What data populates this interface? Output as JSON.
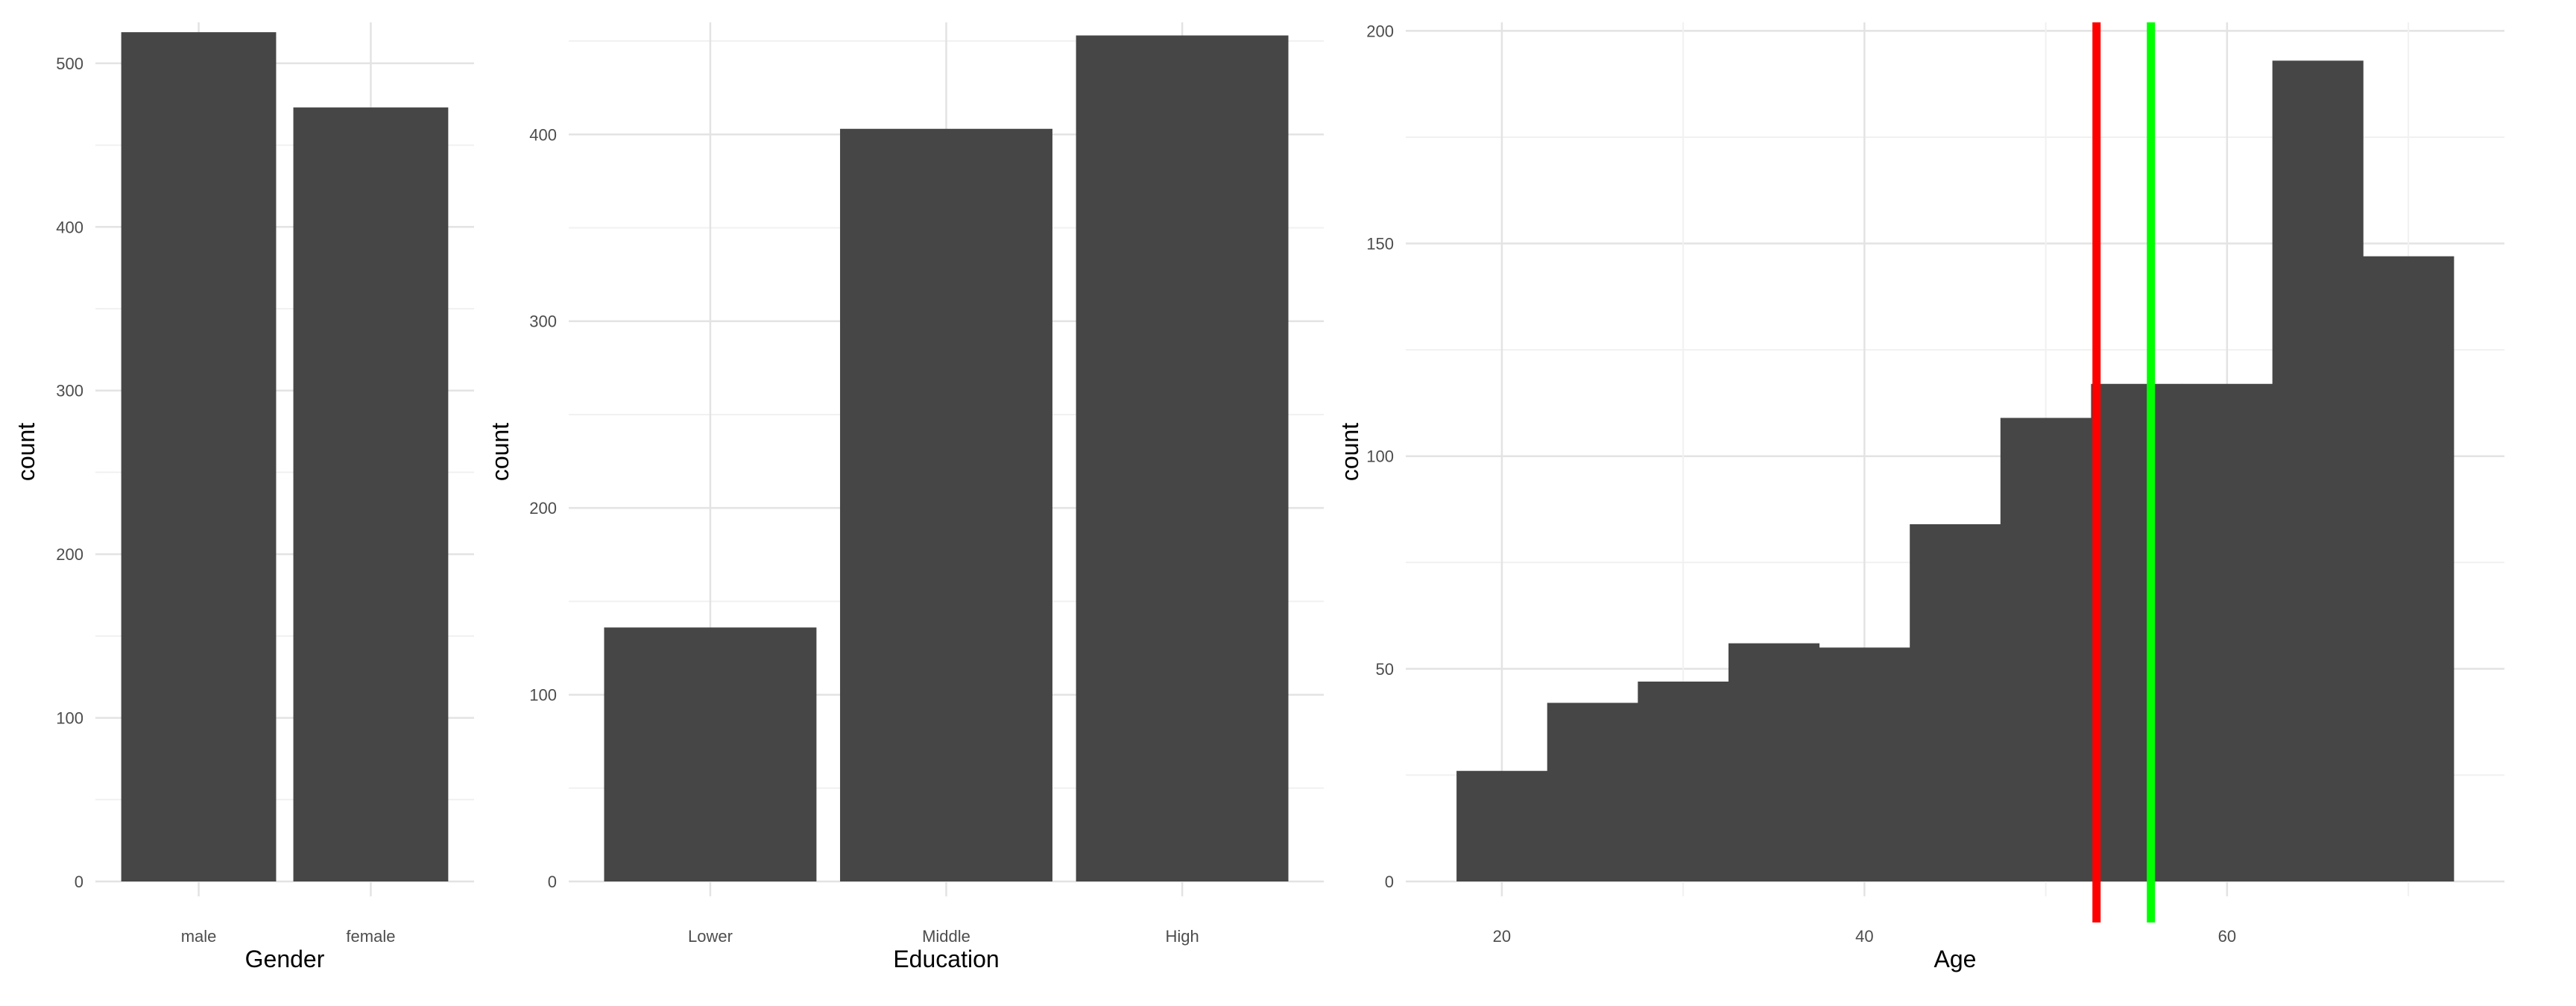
{
  "colors": {
    "background": "#ffffff",
    "bar_fill": "#464646",
    "grid_major": "#e3e3e3",
    "grid_minor": "#f1f1f1",
    "tick_text": "#4d4d4d",
    "axis_title": "#000000"
  },
  "chart_data": [
    {
      "type": "bar",
      "title": "",
      "xlabel": "Gender",
      "ylabel": "count",
      "categories": [
        "male",
        "female"
      ],
      "values": [
        519,
        473
      ],
      "ylim": [
        0,
        525
      ],
      "y_ticks": [
        0,
        100,
        200,
        300,
        400,
        500
      ],
      "grid": true
    },
    {
      "type": "bar",
      "title": "",
      "xlabel": "Education",
      "ylabel": "count",
      "categories": [
        "Lower",
        "Middle",
        "High"
      ],
      "values": [
        136,
        403,
        453
      ],
      "ylim": [
        0,
        460
      ],
      "y_ticks": [
        0,
        100,
        200,
        300,
        400
      ],
      "grid": true
    },
    {
      "type": "histogram",
      "title": "",
      "xlabel": "Age",
      "ylabel": "count",
      "bins": [
        {
          "x0": 17.5,
          "x1": 22.5,
          "count": 26
        },
        {
          "x0": 22.5,
          "x1": 27.5,
          "count": 42
        },
        {
          "x0": 27.5,
          "x1": 32.5,
          "count": 47
        },
        {
          "x0": 32.5,
          "x1": 37.5,
          "count": 56
        },
        {
          "x0": 37.5,
          "x1": 42.5,
          "count": 55
        },
        {
          "x0": 42.5,
          "x1": 47.5,
          "count": 84
        },
        {
          "x0": 47.5,
          "x1": 52.5,
          "count": 109
        },
        {
          "x0": 52.5,
          "x1": 57.5,
          "count": 117
        },
        {
          "x0": 57.5,
          "x1": 62.5,
          "count": 117
        },
        {
          "x0": 62.5,
          "x1": 67.5,
          "count": 193
        },
        {
          "x0": 67.5,
          "x1": 72.5,
          "count": 147
        }
      ],
      "vlines": [
        {
          "x": 52.8,
          "color": "#ff0000"
        },
        {
          "x": 55.8,
          "color": "#00ff00"
        }
      ],
      "xlim": [
        14.7,
        75.3
      ],
      "ylim": [
        0,
        202
      ],
      "x_ticks": [
        20,
        40,
        60
      ],
      "y_ticks": [
        0,
        50,
        100,
        150,
        200
      ],
      "grid": true
    }
  ]
}
